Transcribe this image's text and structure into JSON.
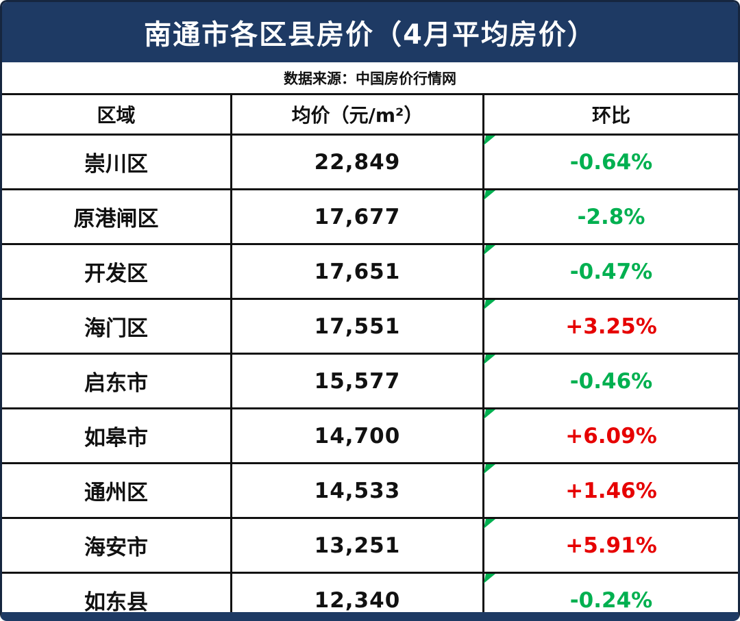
{
  "title": "南通市各区县房价（4月平均房价）",
  "source": "数据来源：中国房价行情网",
  "colors": {
    "header_navy": "#1e3a64",
    "positive_red": "#e60000",
    "negative_green": "#00b050",
    "grid_border": "#111111"
  },
  "chart_data": {
    "type": "table",
    "title": "南通市各区县房价（4月平均房价）",
    "subtitle": "数据来源：中国房价行情网",
    "columns": [
      "区域",
      "均价（元/m²）",
      "环比"
    ],
    "rows": [
      {
        "region": "崇川区",
        "price": "22,849",
        "change": "-0.64%",
        "trend": "down"
      },
      {
        "region": "原港闸区",
        "price": "17,677",
        "change": "-2.8%",
        "trend": "down"
      },
      {
        "region": "开发区",
        "price": "17,651",
        "change": "-0.47%",
        "trend": "down"
      },
      {
        "region": "海门区",
        "price": "17,551",
        "change": "+3.25%",
        "trend": "up"
      },
      {
        "region": "启东市",
        "price": "15,577",
        "change": "-0.46%",
        "trend": "down"
      },
      {
        "region": "如皋市",
        "price": "14,700",
        "change": "+6.09%",
        "trend": "up"
      },
      {
        "region": "通州区",
        "price": "14,533",
        "change": "+1.46%",
        "trend": "up"
      },
      {
        "region": "海安市",
        "price": "13,251",
        "change": "+5.91%",
        "trend": "up"
      },
      {
        "region": "如东县",
        "price": "12,340",
        "change": "-0.24%",
        "trend": "down"
      }
    ]
  }
}
